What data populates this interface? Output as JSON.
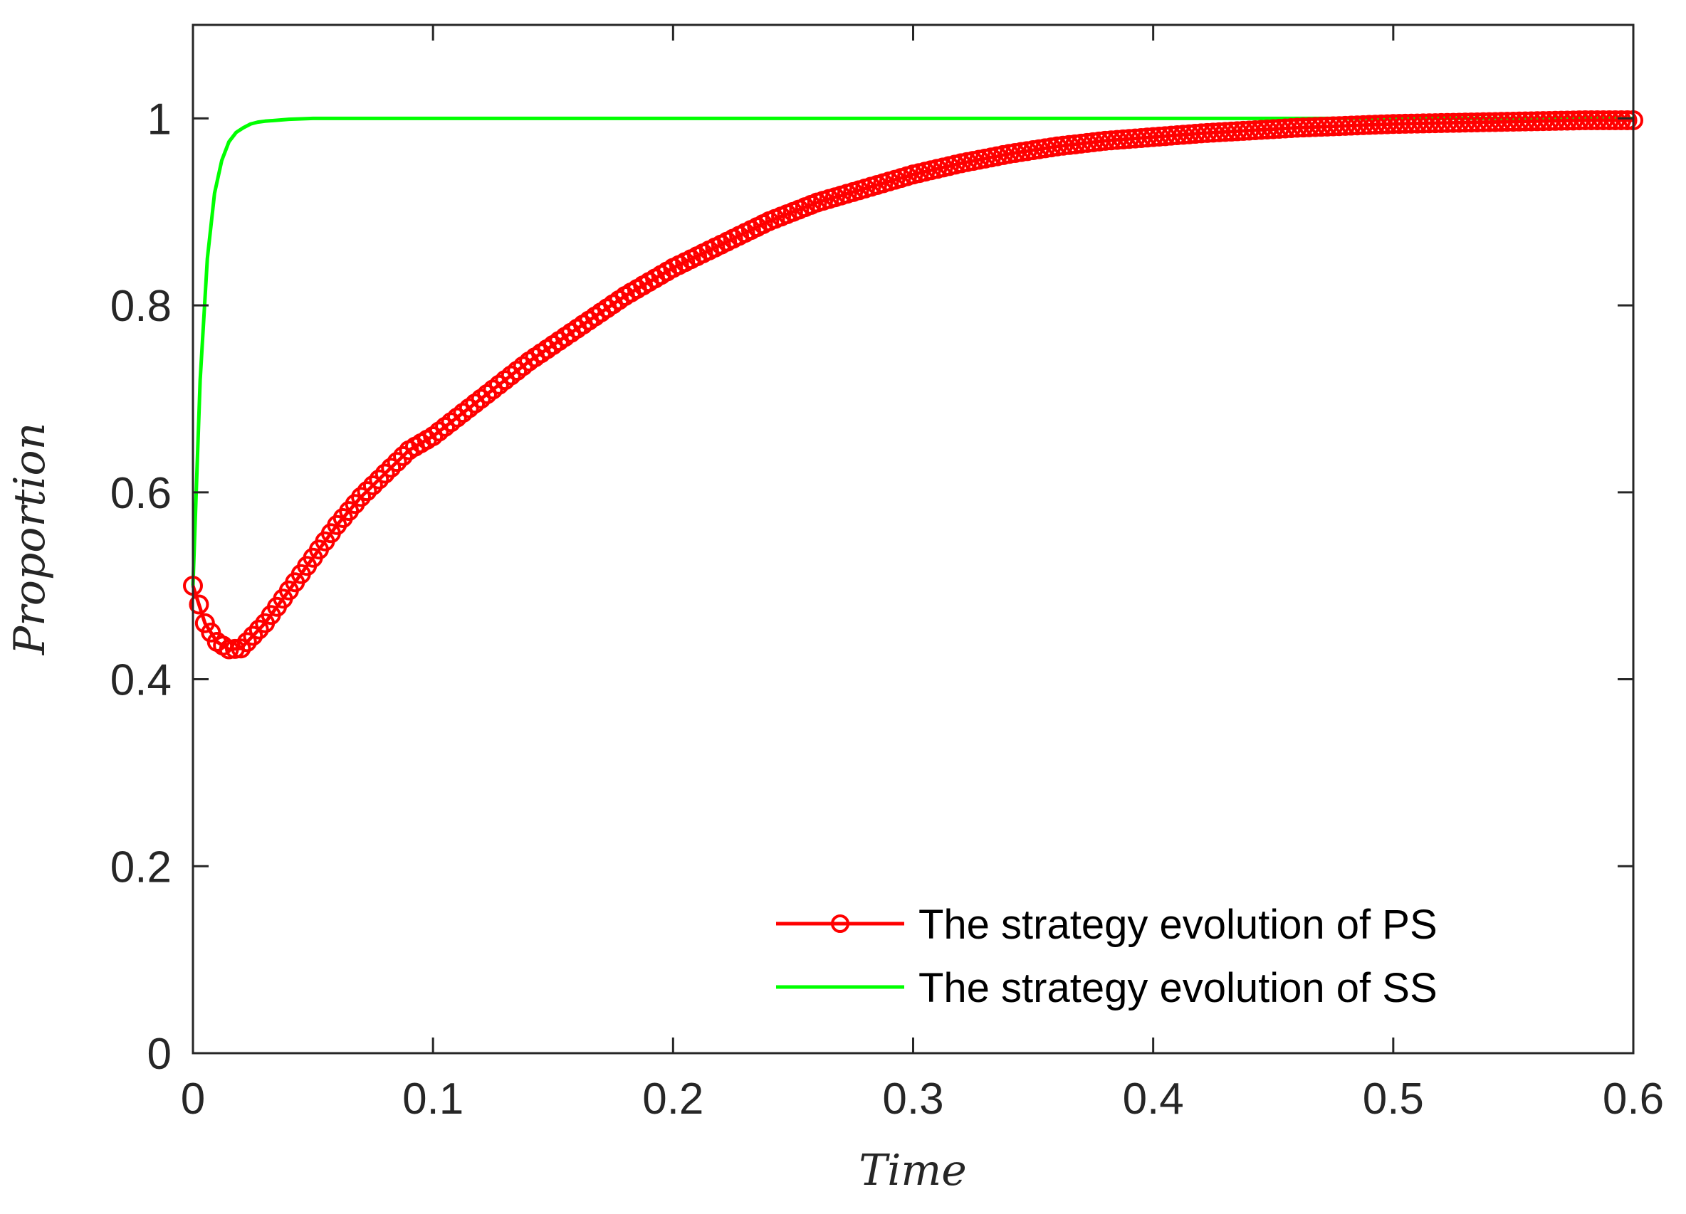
{
  "chart_data": {
    "type": "line",
    "title": "",
    "xlabel": "Time",
    "ylabel": "Proportion",
    "xlim": [
      0,
      0.6
    ],
    "ylim": [
      0,
      1.1
    ],
    "xticks": [
      0,
      0.1,
      0.2,
      0.3,
      0.4,
      0.5,
      0.6
    ],
    "xtick_labels": [
      "0",
      "0.1",
      "0.2",
      "0.3",
      "0.4",
      "0.5",
      "0.6"
    ],
    "yticks": [
      0,
      0.2,
      0.4,
      0.6,
      0.8,
      1
    ],
    "ytick_labels": [
      "0",
      "0.2",
      "0.4",
      "0.6",
      "0.8",
      "1"
    ],
    "grid": false,
    "legend_position": "bottom-right",
    "series": [
      {
        "name": "The strategy evolution of PS",
        "color": "#ff0000",
        "marker": "circle",
        "x": [
          0,
          0.005,
          0.01,
          0.015,
          0.02,
          0.03,
          0.04,
          0.05,
          0.06,
          0.07,
          0.08,
          0.09,
          0.1,
          0.12,
          0.14,
          0.16,
          0.18,
          0.2,
          0.22,
          0.24,
          0.26,
          0.28,
          0.3,
          0.32,
          0.34,
          0.36,
          0.38,
          0.4,
          0.42,
          0.44,
          0.46,
          0.48,
          0.5,
          0.52,
          0.54,
          0.56,
          0.58,
          0.6
        ],
        "y": [
          0.5,
          0.46,
          0.44,
          0.432,
          0.433,
          0.46,
          0.495,
          0.53,
          0.565,
          0.595,
          0.62,
          0.645,
          0.66,
          0.7,
          0.74,
          0.775,
          0.81,
          0.84,
          0.865,
          0.89,
          0.91,
          0.925,
          0.94,
          0.952,
          0.962,
          0.97,
          0.976,
          0.98,
          0.984,
          0.987,
          0.99,
          0.992,
          0.994,
          0.995,
          0.996,
          0.997,
          0.998,
          0.998
        ]
      },
      {
        "name": "The strategy evolution of SS",
        "color": "#00ff00",
        "marker": "none",
        "x": [
          0,
          0.003,
          0.006,
          0.009,
          0.012,
          0.015,
          0.018,
          0.021,
          0.024,
          0.027,
          0.03,
          0.035,
          0.04,
          0.05,
          0.1,
          0.2,
          0.3,
          0.4,
          0.5,
          0.6
        ],
        "y": [
          0.5,
          0.72,
          0.85,
          0.92,
          0.955,
          0.975,
          0.985,
          0.99,
          0.994,
          0.996,
          0.997,
          0.998,
          0.999,
          1.0,
          1.0,
          1.0,
          1.0,
          1.0,
          1.0,
          1.0
        ]
      }
    ]
  }
}
